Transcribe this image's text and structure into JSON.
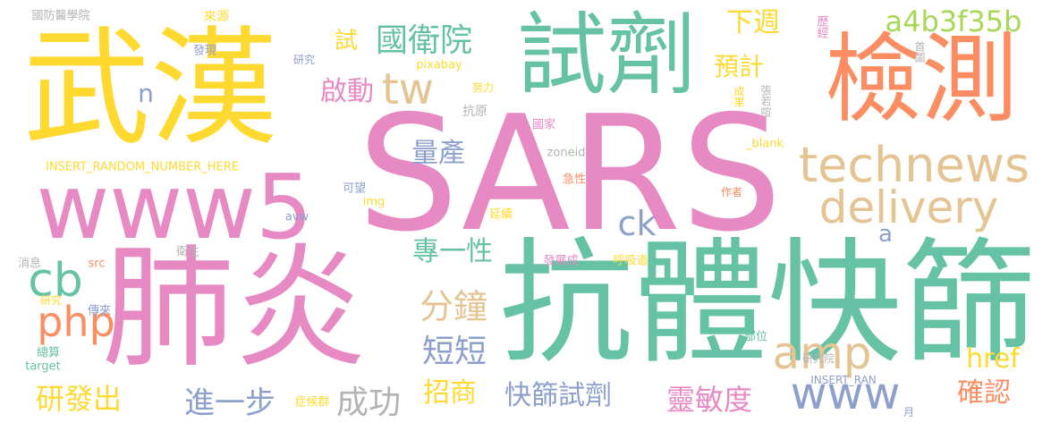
{
  "colors": {
    "pink": "#e78ac3",
    "green": "#66c2a5",
    "yellow": "#ffd92f",
    "orange": "#fc8d62",
    "tan": "#e5c494",
    "blue": "#8da0cb",
    "lime": "#a6d854",
    "gray": "#b3b3b3"
  },
  "words": [
    {
      "text": "SARS",
      "color": "pink"
    },
    {
      "text": "武漢",
      "color": "yellow"
    },
    {
      "text": "試劑",
      "color": "green"
    },
    {
      "text": "檢測",
      "color": "orange"
    },
    {
      "text": "肺炎",
      "color": "pink"
    },
    {
      "text": "抗體快篩",
      "color": "green"
    },
    {
      "text": "www5",
      "color": "pink"
    },
    {
      "text": "technews",
      "color": "tan"
    },
    {
      "text": "delivery",
      "color": "tan"
    },
    {
      "text": "國衛院",
      "color": "green"
    },
    {
      "text": "下週",
      "color": "yellow"
    },
    {
      "text": "a4b3f35b",
      "color": "lime"
    },
    {
      "text": "tw",
      "color": "tan"
    },
    {
      "text": "啟動",
      "color": "pink"
    },
    {
      "text": "預計",
      "color": "yellow"
    },
    {
      "text": "試",
      "color": "yellow"
    },
    {
      "text": "n",
      "color": "blue"
    },
    {
      "text": "量產",
      "color": "blue"
    },
    {
      "text": "ck",
      "color": "blue"
    },
    {
      "text": "a",
      "color": "blue"
    },
    {
      "text": "專一性",
      "color": "green"
    },
    {
      "text": "cb",
      "color": "green"
    },
    {
      "text": "php",
      "color": "orange"
    },
    {
      "text": "分鐘",
      "color": "tan"
    },
    {
      "text": "短短",
      "color": "blue"
    },
    {
      "text": "amp",
      "color": "tan"
    },
    {
      "text": "www",
      "color": "blue"
    },
    {
      "text": "href",
      "color": "yellow"
    },
    {
      "text": "確認",
      "color": "orange"
    },
    {
      "text": "研發出",
      "color": "yellow"
    },
    {
      "text": "進一步",
      "color": "blue"
    },
    {
      "text": "成功",
      "color": "gray"
    },
    {
      "text": "招商",
      "color": "yellow"
    },
    {
      "text": "快篩試劑",
      "color": "blue"
    },
    {
      "text": "靈敏度",
      "color": "pink"
    },
    {
      "text": "國防醫學院",
      "color": "gray"
    },
    {
      "text": "來源",
      "color": "yellow"
    },
    {
      "text": "發現",
      "color": "blue"
    },
    {
      "text": "研究",
      "color": "blue"
    },
    {
      "text": "pixabay",
      "color": "yellow"
    },
    {
      "text": "努力",
      "color": "yellow"
    },
    {
      "text": "抗原",
      "color": "gray"
    },
    {
      "text": "國家",
      "color": "pink"
    },
    {
      "text": "INSERT_RANDOM_NUMBER_HERE",
      "color": "yellow"
    },
    {
      "text": "zoneid",
      "color": "gray"
    },
    {
      "text": "_blank",
      "color": "yellow"
    },
    {
      "text": "可望",
      "color": "blue"
    },
    {
      "text": "img",
      "color": "yellow"
    },
    {
      "text": "急性",
      "color": "orange"
    },
    {
      "text": "作者",
      "color": "orange"
    },
    {
      "text": "avw",
      "color": "blue"
    },
    {
      "text": "延續",
      "color": "yellow"
    },
    {
      "text": "衛生",
      "color": "gray"
    },
    {
      "text": "消息",
      "color": "gray"
    },
    {
      "text": "src",
      "color": "orange"
    },
    {
      "text": "研究",
      "color": "yellow"
    },
    {
      "text": "發展成",
      "color": "pink"
    },
    {
      "text": "呼吸道",
      "color": "yellow"
    },
    {
      "text": "傳來",
      "color": "blue"
    },
    {
      "text": "總算",
      "color": "green"
    },
    {
      "text": "target",
      "color": "green"
    },
    {
      "text": "部位",
      "color": "green"
    },
    {
      "text": "研究院",
      "color": "gray"
    },
    {
      "text": "INSERT_RAN",
      "color": "blue"
    },
    {
      "text": "症候群",
      "color": "yellow"
    },
    {
      "text": "月",
      "color": "blue"
    },
    {
      "text": "歷經",
      "color": "pink"
    },
    {
      "text": "首圖",
      "color": "gray"
    },
    {
      "text": "成果",
      "color": "yellow"
    },
    {
      "text": "張若喧",
      "color": "gray"
    }
  ]
}
